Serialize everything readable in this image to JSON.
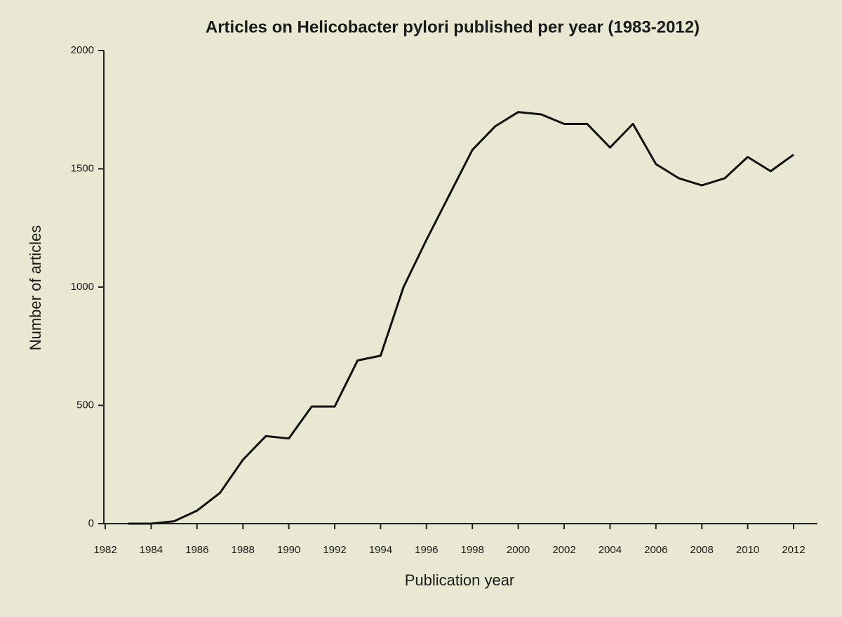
{
  "chart_data": {
    "type": "line",
    "title": "Articles on Helicobacter pylori published per year (1983-2012)",
    "x_label": "Publication year",
    "y_label": "Number of articles",
    "x": [
      1983,
      1984,
      1985,
      1986,
      1987,
      1988,
      1989,
      1990,
      1991,
      1992,
      1993,
      1994,
      1995,
      1996,
      1997,
      1998,
      1999,
      2000,
      2001,
      2002,
      2003,
      2004,
      2005,
      2006,
      2007,
      2008,
      2009,
      2010,
      2011,
      2012
    ],
    "series": [
      {
        "name": "Articles",
        "color": "#111111",
        "values": [
          0,
          0,
          10,
          55,
          130,
          270,
          370,
          360,
          495,
          495,
          690,
          710,
          1000,
          1200,
          1390,
          1580,
          1680,
          1740,
          1730,
          1690,
          1690,
          1590,
          1690,
          1520,
          1460,
          1430,
          1460,
          1550,
          1490,
          1560
        ]
      }
    ],
    "xlim": [
      1982,
      2012
    ],
    "xticks": [
      1982,
      1984,
      1986,
      1988,
      1990,
      1992,
      1994,
      1996,
      1998,
      2000,
      2002,
      2004,
      2006,
      2008,
      2010,
      2012
    ],
    "ylim": [
      0,
      2000
    ],
    "yticks": [
      0,
      500,
      1000,
      1500,
      2000
    ],
    "grid": false
  }
}
